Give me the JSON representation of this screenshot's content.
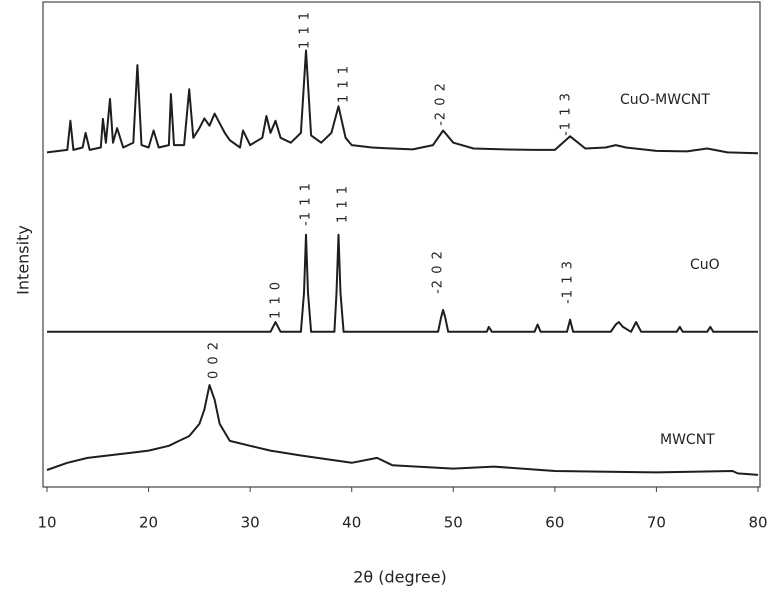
{
  "chart_data": {
    "type": "line",
    "xlabel": "2θ (degree)",
    "ylabel": "Intensity",
    "xlim": [
      10,
      80
    ],
    "xticks": [
      10,
      20,
      30,
      40,
      50,
      60,
      70,
      80
    ],
    "ylim": [
      0,
      100
    ],
    "series": [
      {
        "name": "CuO-MWCNT",
        "color": "#1e1e1e",
        "annotations": [
          "1 1 1",
          "1 1 1",
          "-2 0 2",
          "-1 1 3"
        ],
        "x": [
          10,
          12,
          12.3,
          12.6,
          13.5,
          13.8,
          14.2,
          15.3,
          15.5,
          15.8,
          16.2,
          16.5,
          16.9,
          17.5,
          18.5,
          18.9,
          19.3,
          20,
          20.5,
          21,
          22,
          22.2,
          22.5,
          23.5,
          24,
          24.4,
          25,
          25.5,
          26,
          26.5,
          27,
          27.5,
          28,
          29,
          29.3,
          30,
          31.2,
          31.6,
          32,
          32.5,
          33,
          34,
          35,
          35.5,
          36,
          37,
          38,
          38.7,
          39.4,
          40,
          42,
          44,
          46,
          48,
          49,
          50,
          52,
          55,
          58,
          60,
          61.5,
          63,
          65,
          66,
          67,
          70,
          73,
          75,
          77,
          80
        ],
        "values": [
          69,
          69.5,
          75.5,
          69.5,
          70,
          73,
          69.5,
          70,
          75.9,
          71,
          80,
          71,
          74,
          70,
          71,
          87,
          70.5,
          70,
          73.5,
          70,
          70.5,
          81,
          70.5,
          70.5,
          82,
          72,
          74,
          76,
          74.5,
          77,
          75,
          73,
          71.5,
          70,
          73.5,
          70.5,
          72,
          76.5,
          73,
          75.5,
          72,
          71,
          73,
          90,
          72.5,
          71,
          73,
          78.5,
          72,
          70.5,
          70,
          69.8,
          69.6,
          70.5,
          73.5,
          71,
          69.8,
          69.6,
          69.5,
          69.5,
          72.3,
          69.8,
          70,
          70.5,
          70,
          69.3,
          69.2,
          69.8,
          69,
          68.8
        ]
      },
      {
        "name": "CuO",
        "color": "#1e1e1e",
        "annotations": [
          "1 1 0",
          "-1 1 1",
          "1 1 1",
          "-2 0 2",
          "-1 1 3"
        ],
        "x": [
          10,
          32,
          32.5,
          33,
          35,
          35.3,
          35.5,
          35.7,
          36,
          38.3,
          38.5,
          38.7,
          38.9,
          39.2,
          48.5,
          48.8,
          49,
          49.2,
          49.5,
          53.3,
          53.5,
          53.8,
          58,
          58.3,
          58.6,
          61.2,
          61.5,
          61.8,
          65.5,
          66,
          66.3,
          66.7,
          67.5,
          68,
          68.5,
          72,
          72.3,
          72.6,
          75,
          75.3,
          75.6,
          80
        ],
        "values": [
          32,
          32,
          34,
          32,
          32,
          40,
          52,
          40,
          32,
          32,
          40,
          52,
          40,
          32,
          32,
          35,
          36.5,
          35,
          32,
          32,
          33,
          32,
          32,
          33.5,
          32,
          32,
          34.5,
          32,
          32,
          33.5,
          34,
          33,
          32,
          34,
          32,
          32,
          33,
          32,
          32,
          33,
          32,
          32
        ]
      },
      {
        "name": "MWCNT",
        "color": "#1e1e1e",
        "annotations": [
          "0 0 2"
        ],
        "x": [
          10,
          12,
          14,
          16,
          18,
          20,
          22,
          23,
          24,
          25,
          25.5,
          26,
          26.5,
          27,
          28,
          30,
          32,
          35,
          40,
          42.5,
          44,
          50,
          54,
          60,
          70,
          77.5,
          78,
          80
        ],
        "values": [
          3.5,
          5,
          6,
          6.5,
          7,
          7.5,
          8.5,
          9.5,
          10.5,
          13,
          16,
          21,
          18,
          13,
          9.5,
          8.5,
          7.5,
          6.5,
          5,
          6,
          4.5,
          3.8,
          4.2,
          3.3,
          3,
          3.3,
          2.8,
          2.5
        ]
      }
    ]
  }
}
